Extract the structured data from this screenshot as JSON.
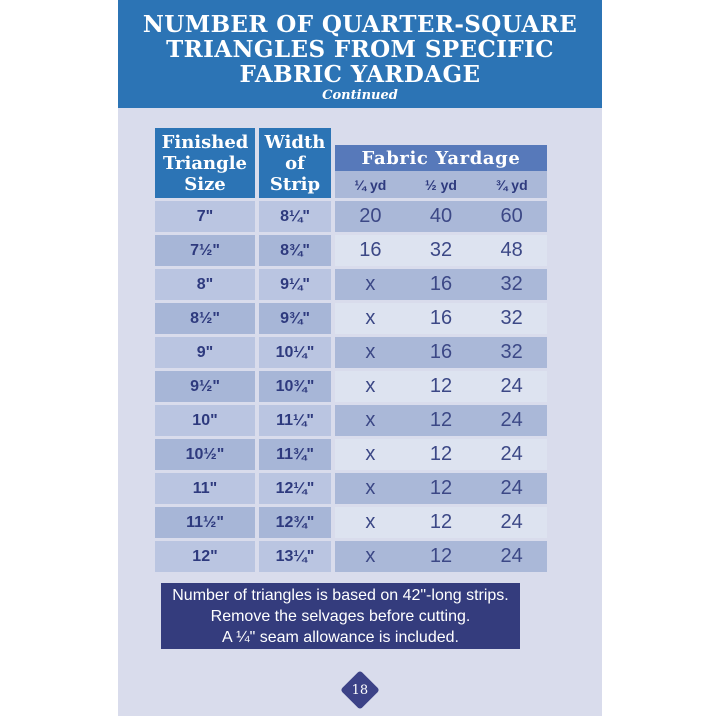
{
  "header": {
    "title_lines": [
      "NUMBER OF QUARTER-SQUARE",
      "TRIANGLES FROM SPECIFIC",
      "FABRIC YARDAGE"
    ],
    "subtitle": "Continued"
  },
  "table": {
    "col1_header": "Finished Triangle Size",
    "col2_header": "Width of Strip",
    "group_header": "Fabric Yardage",
    "yardage_headers": [
      "¼ yd",
      "½ yd",
      "¾ yd"
    ],
    "rows": [
      {
        "size": "7\"",
        "strip": "8¼\"",
        "values": [
          "20",
          "40",
          "60"
        ]
      },
      {
        "size": "7½\"",
        "strip": "8¾\"",
        "values": [
          "16",
          "32",
          "48"
        ]
      },
      {
        "size": "8\"",
        "strip": "9¼\"",
        "values": [
          "x",
          "16",
          "32"
        ]
      },
      {
        "size": "8½\"",
        "strip": "9¾\"",
        "values": [
          "x",
          "16",
          "32"
        ]
      },
      {
        "size": "9\"",
        "strip": "10¼\"",
        "values": [
          "x",
          "16",
          "32"
        ]
      },
      {
        "size": "9½\"",
        "strip": "10¾\"",
        "values": [
          "x",
          "12",
          "24"
        ]
      },
      {
        "size": "10\"",
        "strip": "11¼\"",
        "values": [
          "x",
          "12",
          "24"
        ]
      },
      {
        "size": "10½\"",
        "strip": "11¾\"",
        "values": [
          "x",
          "12",
          "24"
        ]
      },
      {
        "size": "11\"",
        "strip": "12¼\"",
        "values": [
          "x",
          "12",
          "24"
        ]
      },
      {
        "size": "11½\"",
        "strip": "12¾\"",
        "values": [
          "x",
          "12",
          "24"
        ]
      },
      {
        "size": "12\"",
        "strip": "13¼\"",
        "values": [
          "x",
          "12",
          "24"
        ]
      }
    ]
  },
  "footnote": {
    "lines": [
      "Number of triangles is based on 42\"-long strips.",
      "Remove the selvages before cutting.",
      "A ¼\" seam allowance is included."
    ]
  },
  "footer": {
    "page_number": "18"
  },
  "colors": {
    "header_blue": "#2C74B5",
    "panel_lavender": "#D9DCEC",
    "group_band_blue": "#5779BA",
    "row_light": "#BAC5E1",
    "row_medium": "#AAB8D8",
    "row_dark": "#A7B6D7",
    "row_pale": "#DDE3F0",
    "navy_text": "#2E3A7E",
    "footnote_navy": "#343C7D",
    "badge_navy": "#3C4287"
  }
}
